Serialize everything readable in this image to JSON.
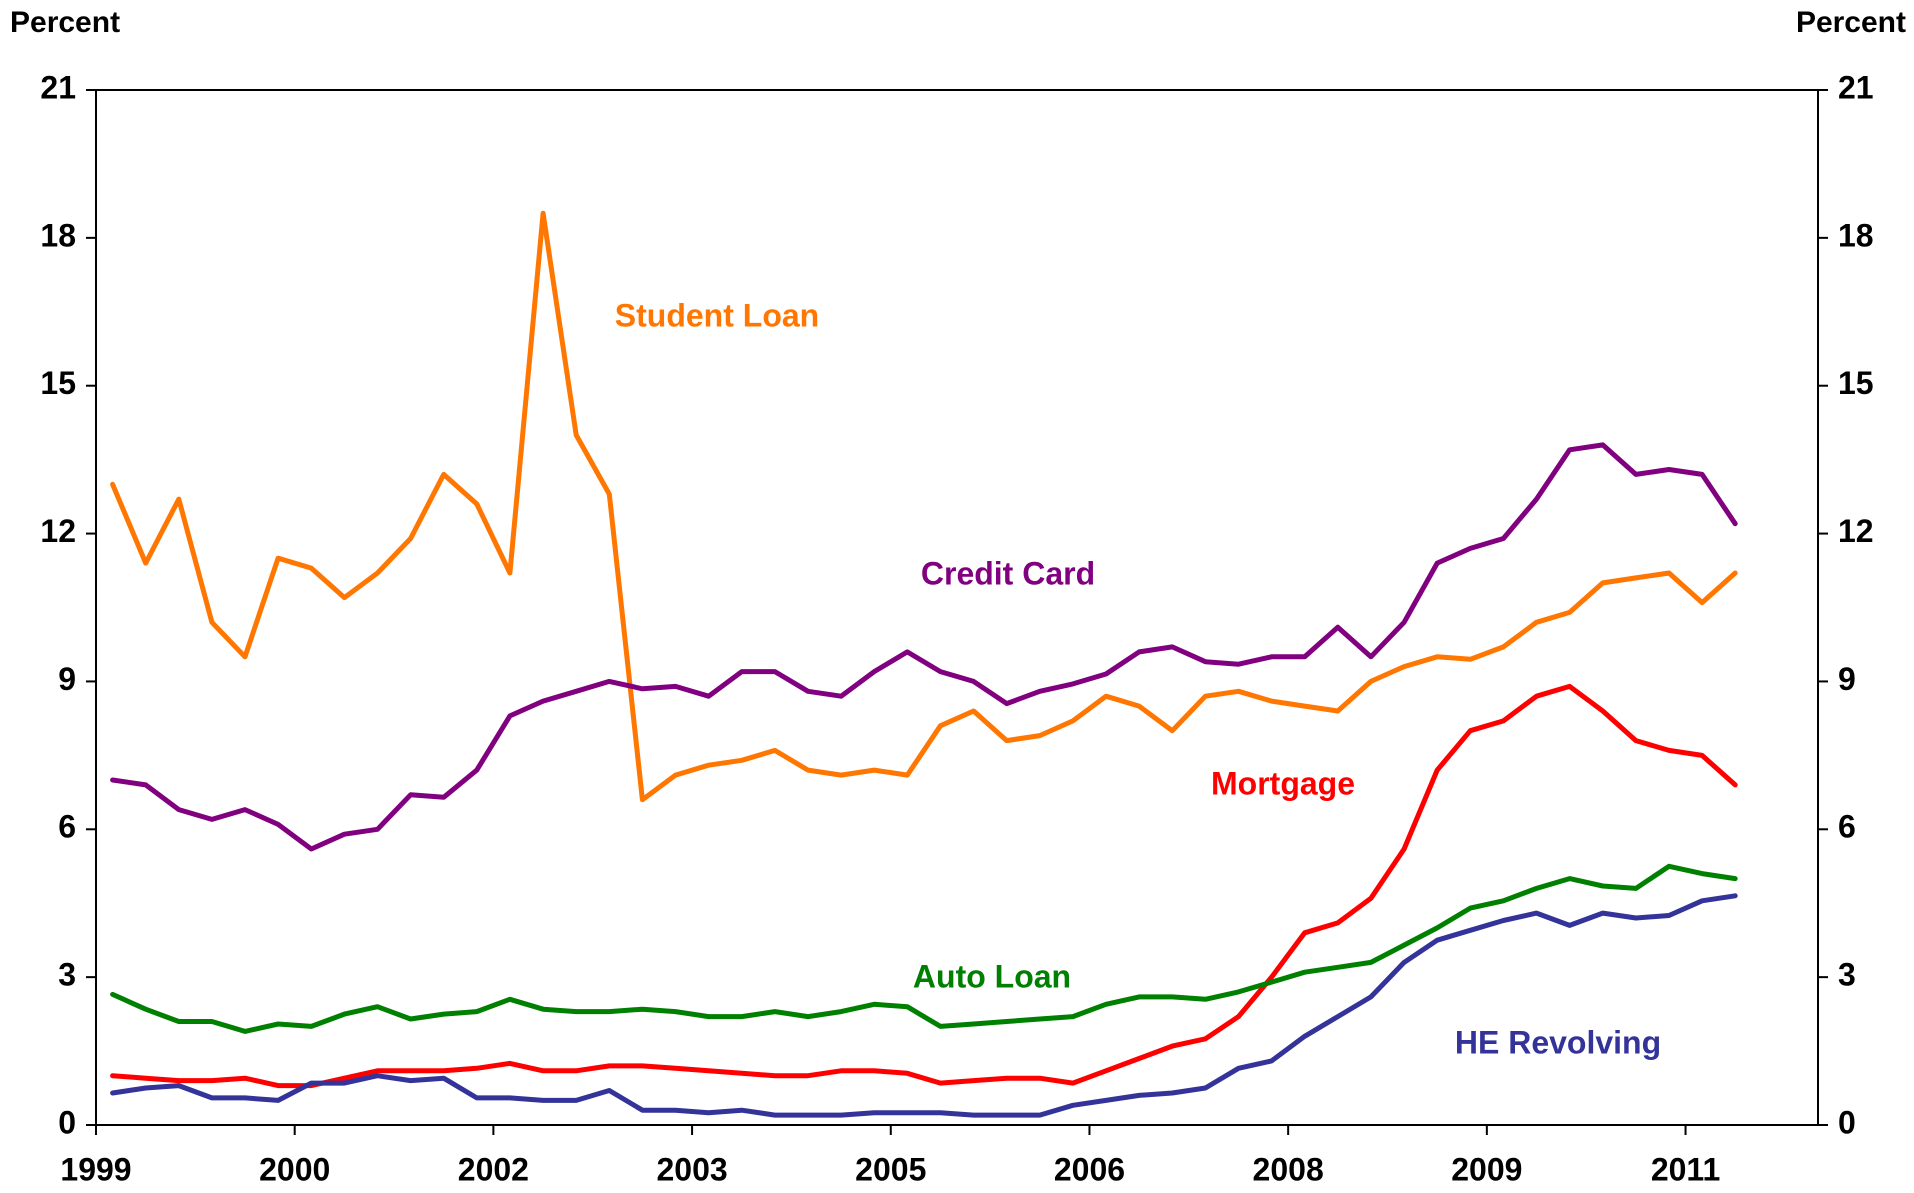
{
  "chart_data": {
    "type": "line",
    "y_label": "Percent",
    "y2_label": "Percent",
    "categories": [
      "1999",
      null,
      null,
      null,
      null,
      null,
      "2000",
      null,
      null,
      null,
      null,
      null,
      "2002",
      null,
      null,
      null,
      null,
      null,
      "2003",
      null,
      null,
      null,
      null,
      null,
      "2005",
      null,
      null,
      null,
      null,
      null,
      "2006",
      null,
      null,
      null,
      null,
      null,
      "2008",
      null,
      null,
      null,
      null,
      null,
      "2009",
      null,
      null,
      null,
      null,
      null,
      "2011",
      null
    ],
    "ylim": [
      0,
      21
    ],
    "yticks": [
      0,
      3,
      6,
      9,
      12,
      15,
      18,
      21
    ],
    "y2lim": [
      0,
      21
    ],
    "y2ticks": [
      0,
      3,
      6,
      9,
      12,
      15,
      18,
      21
    ],
    "series": [
      {
        "name": "Student Loan",
        "color": "#FF7700",
        "values": [
          13.0,
          11.4,
          12.7,
          10.2,
          9.5,
          11.5,
          11.3,
          10.7,
          11.2,
          11.9,
          13.2,
          12.6,
          11.2,
          18.5,
          14.0,
          12.8,
          6.6,
          7.1,
          7.3,
          7.4,
          7.6,
          7.2,
          7.1,
          7.2,
          7.1,
          8.1,
          8.4,
          7.8,
          7.9,
          8.2,
          8.7,
          8.5,
          8.0,
          8.7,
          8.8,
          8.6,
          8.5,
          8.4,
          9.0,
          9.3,
          9.5,
          9.45,
          9.7,
          10.2,
          10.4,
          11.0,
          11.1,
          11.2,
          10.6,
          11.2
        ]
      },
      {
        "name": "Credit Card",
        "color": "#800080",
        "values": [
          7.0,
          6.9,
          6.4,
          6.2,
          6.4,
          6.1,
          5.6,
          5.9,
          6.0,
          6.7,
          6.65,
          7.2,
          8.3,
          8.6,
          8.8,
          9.0,
          8.85,
          8.9,
          8.7,
          9.2,
          9.2,
          8.8,
          8.7,
          9.2,
          9.6,
          9.2,
          9.0,
          8.55,
          8.8,
          8.95,
          9.15,
          9.6,
          9.7,
          9.4,
          9.35,
          9.5,
          9.5,
          10.1,
          9.5,
          10.2,
          11.4,
          11.7,
          11.9,
          12.7,
          13.7,
          13.8,
          13.2,
          13.3,
          13.2,
          12.2
        ]
      },
      {
        "name": "Mortgage",
        "color": "#FF0000",
        "values": [
          1.0,
          0.95,
          0.9,
          0.9,
          0.95,
          0.8,
          0.8,
          0.95,
          1.1,
          1.1,
          1.1,
          1.15,
          1.25,
          1.1,
          1.1,
          1.2,
          1.2,
          1.15,
          1.1,
          1.05,
          1.0,
          1.0,
          1.1,
          1.1,
          1.05,
          0.85,
          0.9,
          0.95,
          0.95,
          0.85,
          1.1,
          1.35,
          1.6,
          1.75,
          2.2,
          3.0,
          3.9,
          4.1,
          4.6,
          5.6,
          7.2,
          8.0,
          8.2,
          8.7,
          8.9,
          8.4,
          7.8,
          7.6,
          7.5,
          6.9
        ]
      },
      {
        "name": "Auto Loan",
        "color": "#008000",
        "values": [
          2.65,
          2.35,
          2.1,
          2.1,
          1.9,
          2.05,
          2.0,
          2.25,
          2.4,
          2.15,
          2.25,
          2.3,
          2.55,
          2.35,
          2.3,
          2.3,
          2.35,
          2.3,
          2.2,
          2.2,
          2.3,
          2.2,
          2.3,
          2.45,
          2.4,
          2.0,
          2.05,
          2.1,
          2.15,
          2.2,
          2.45,
          2.6,
          2.6,
          2.55,
          2.7,
          2.9,
          3.1,
          3.2,
          3.3,
          3.65,
          4.0,
          4.4,
          4.55,
          4.8,
          5.0,
          4.85,
          4.8,
          5.25,
          5.1,
          5.0
        ]
      },
      {
        "name": "HE Revolving",
        "color": "#333399",
        "values": [
          0.65,
          0.75,
          0.8,
          0.55,
          0.55,
          0.5,
          0.85,
          0.85,
          1.0,
          0.9,
          0.95,
          0.55,
          0.55,
          0.5,
          0.5,
          0.7,
          0.3,
          0.3,
          0.25,
          0.3,
          0.2,
          0.2,
          0.2,
          0.25,
          0.25,
          0.25,
          0.2,
          0.2,
          0.2,
          0.4,
          0.5,
          0.6,
          0.65,
          0.75,
          1.15,
          1.3,
          1.8,
          2.2,
          2.6,
          3.3,
          3.75,
          3.95,
          4.15,
          4.3,
          4.05,
          4.3,
          4.2,
          4.25,
          4.55,
          4.65
        ]
      }
    ]
  }
}
